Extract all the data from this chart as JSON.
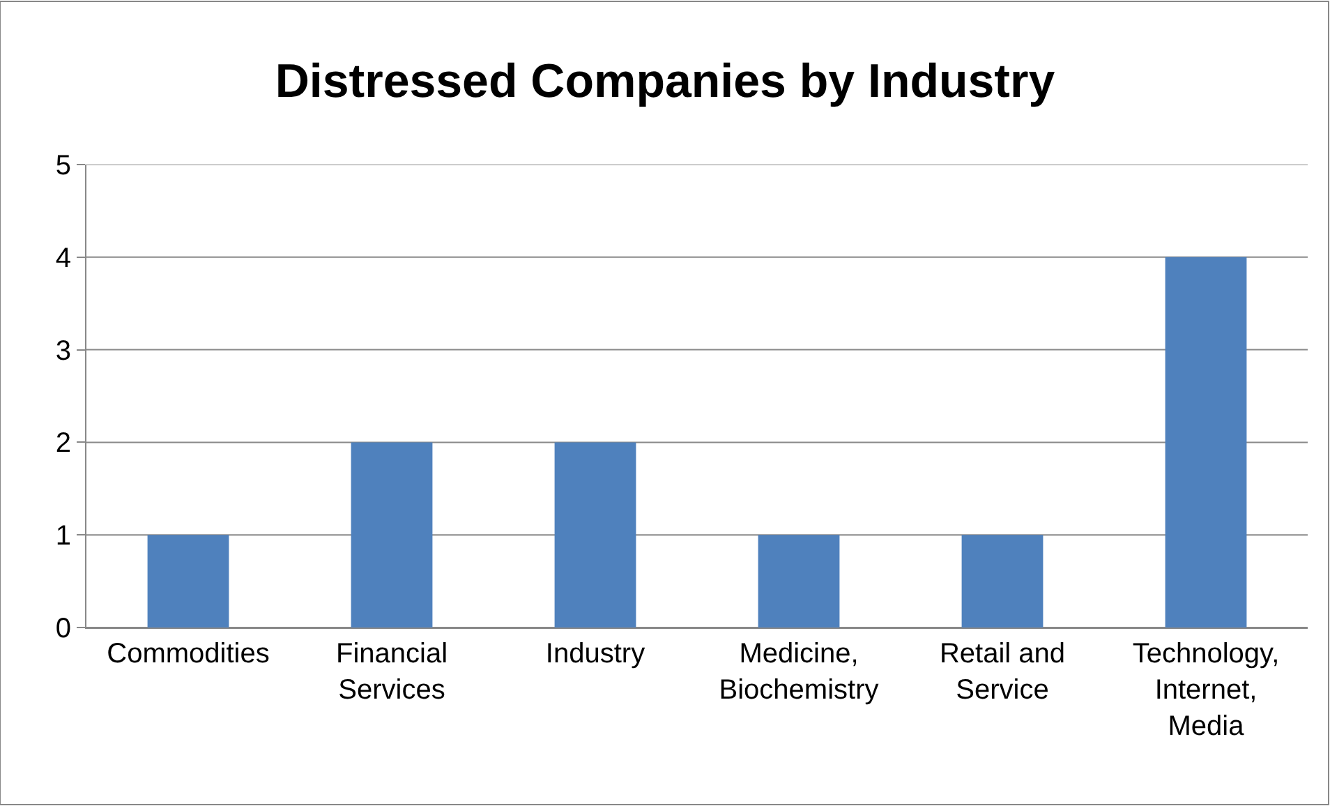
{
  "chart_data": {
    "type": "bar",
    "title": "Distressed Companies by Industry",
    "categories": [
      "Commodities",
      "Financial Services",
      "Industry",
      "Medicine, Biochemistry",
      "Retail and Service",
      "Technology, Internet, Media"
    ],
    "values": [
      1,
      2,
      2,
      1,
      1,
      4
    ],
    "color": "#4f81bd",
    "ylim": [
      0,
      5
    ],
    "yticks": [
      0,
      1,
      2,
      3,
      4,
      5
    ],
    "grid": "y"
  }
}
